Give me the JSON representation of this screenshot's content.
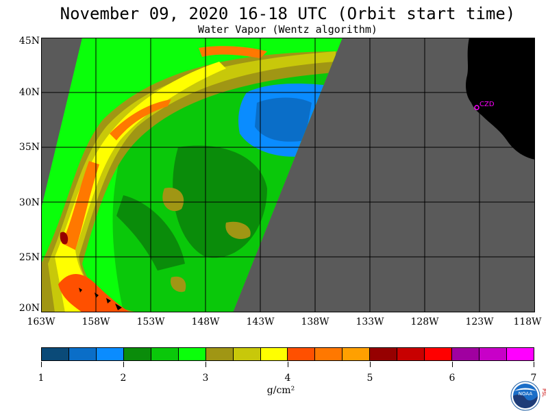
{
  "header": {
    "title": "November 09, 2020  16-18 UTC  (Orbit start time)",
    "subtitle": "Water Vapor (Wentz algorithm)"
  },
  "map": {
    "lat_labels": [
      "45N",
      "40N",
      "35N",
      "30N",
      "25N",
      "20N"
    ],
    "lon_labels": [
      "163W",
      "158W",
      "153W",
      "148W",
      "143W",
      "138W",
      "133W",
      "128W",
      "123W",
      "118W"
    ],
    "station_label": "CZD",
    "colors": {
      "background_gray": "#5a5a5a",
      "land": "#000000",
      "grid": "#000000",
      "station": "#ff00ff"
    }
  },
  "colorbar": {
    "colors": [
      "#0a4a78",
      "#0a6ec8",
      "#0a8cff",
      "#0a8c0a",
      "#0ac80a",
      "#0aff0a",
      "#a09614",
      "#c8c80a",
      "#ffff00",
      "#ff5000",
      "#ff7800",
      "#ffa000",
      "#960000",
      "#c80000",
      "#ff0000",
      "#a000a0",
      "#c800c8",
      "#ff00ff"
    ],
    "tick_labels": [
      "1",
      "2",
      "3",
      "4",
      "5",
      "6",
      "7"
    ],
    "unit": "g/cm²"
  },
  "logo": {
    "text": "NOAA",
    "side_text": "PSL"
  }
}
